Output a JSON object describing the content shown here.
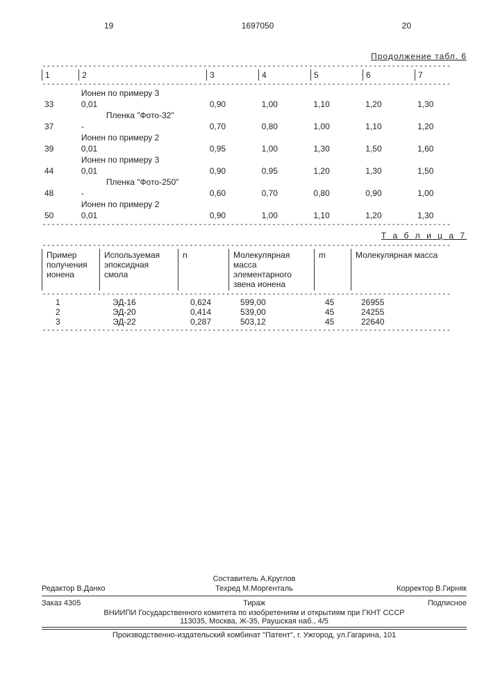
{
  "page_left": "19",
  "doc_number": "1697050",
  "page_right": "20",
  "continuation_label": "Продолжение табл. 6",
  "table6": {
    "columns": [
      "1",
      "2",
      "3",
      "4",
      "5",
      "6",
      "7"
    ],
    "groups": [
      {
        "note": "Ионен по примеру 3",
        "rows": [
          {
            "c1": "33",
            "c2": "0,01",
            "c3": "0,90",
            "c4": "1,00",
            "c5": "1,10",
            "c6": "1,20",
            "c7": "1,30"
          }
        ],
        "subnote": "Пленка \"Фото-32\""
      },
      {
        "note": "",
        "rows": [
          {
            "c1": "37",
            "c2": "-",
            "c3": "0,70",
            "c4": "0,80",
            "c5": "1,00",
            "c6": "1,10",
            "c7": "1,20"
          }
        ]
      },
      {
        "note": "Ионен по примеру 2",
        "rows": [
          {
            "c1": "39",
            "c2": "0,01",
            "c3": "0,95",
            "c4": "1,00",
            "c5": "1,30",
            "c6": "1,50",
            "c7": "1,60"
          }
        ]
      },
      {
        "note": "Ионен по примеру 3",
        "rows": [
          {
            "c1": "44",
            "c2": "0,01",
            "c3": "0,90",
            "c4": "0,95",
            "c5": "1,20",
            "c6": "1,30",
            "c7": "1,50"
          }
        ],
        "subnote": "Пленка \"Фото-250\""
      },
      {
        "note": "",
        "rows": [
          {
            "c1": "48",
            "c2": "-",
            "c3": "0,60",
            "c4": "0,70",
            "c5": "0,80",
            "c6": "0,90",
            "c7": "1,00"
          }
        ]
      },
      {
        "note": "Ионен по примеру 2",
        "rows": [
          {
            "c1": "50",
            "c2": "0,01",
            "c3": "0,90",
            "c4": "1,00",
            "c5": "1,10",
            "c6": "1,20",
            "c7": "1,30"
          }
        ]
      }
    ]
  },
  "table7_label": "Т а б л и ц а 7",
  "table7": {
    "headers": [
      "Пример получения ионена",
      "Используемая эпоксидная смола",
      "n",
      "Молекулярная масса элементарного звена ионена",
      "m",
      "Молекулярная масса"
    ],
    "rows": [
      {
        "c1": "1",
        "c2": "ЭД-16",
        "c3": "0,624",
        "c4": "599,00",
        "c5": "45",
        "c6": "26955"
      },
      {
        "c1": "2",
        "c2": "ЭД-20",
        "c3": "0,414",
        "c4": "539,00",
        "c5": "45",
        "c6": "24255"
      },
      {
        "c1": "3",
        "c2": "ЭД-22",
        "c3": "0,287",
        "c4": "503,12",
        "c5": "45",
        "c6": "22640"
      }
    ]
  },
  "footer": {
    "compiler": "Составитель А.Круглов",
    "editor": "Редактор В.Данко",
    "techred": "Техред М.Моргенталь",
    "corrector": "Корректор В.Гирняк",
    "order": "Заказ 4305",
    "tirage": "Тираж",
    "subscr": "Подписное",
    "org1": "ВНИИПИ Государственного комитета по изобретениям и открытиям при ГКНТ СССР",
    "org2": "113035, Москва, Ж-35, Раушская наб., 4/5",
    "prod": "Производственно-издательский комбинат \"Патент\", г. Ужгород, ул.Гагарина, 101"
  },
  "colors": {
    "text": "#222222",
    "background": "#ffffff",
    "rule": "#333333"
  }
}
